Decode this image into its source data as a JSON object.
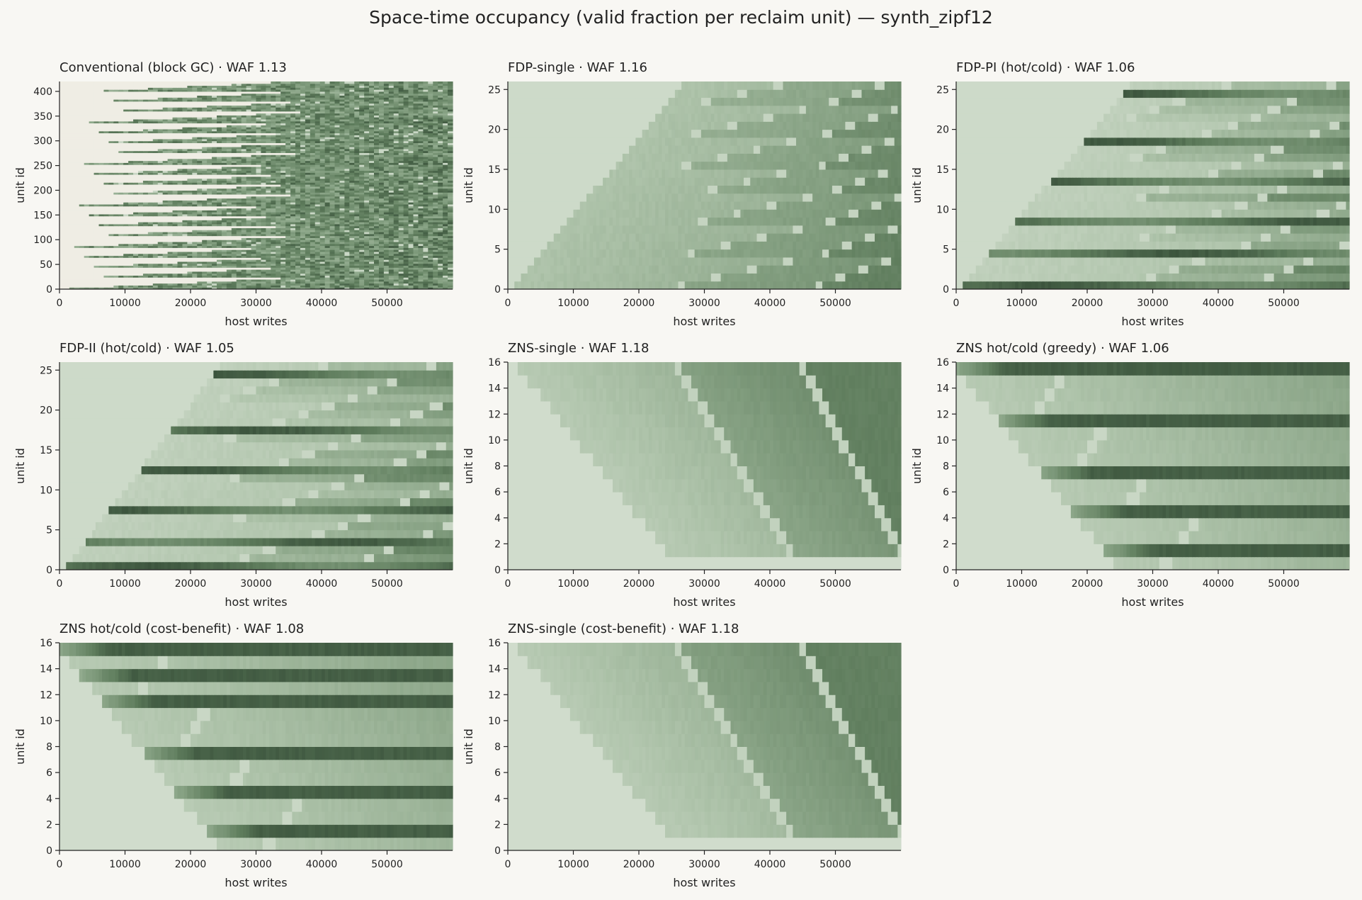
{
  "title": "Space-time occupancy (valid fraction per reclaim unit) — synth_zipf12",
  "colors": {
    "background": "#f8f7f3",
    "empty": "#efede4",
    "colormap": [
      "#d0dccc",
      "#aec3aa",
      "#86a183",
      "#5e7c5c",
      "#344b36"
    ]
  },
  "chart_data": [
    {
      "type": "heatmap",
      "title": "Conventional (block GC) · WAF 1.13",
      "xlabel": "host writes",
      "ylabel": "unit id",
      "xlim": [
        0,
        60000
      ],
      "ylim": [
        0,
        420
      ],
      "xticks": [
        0,
        10000,
        20000,
        30000,
        40000,
        50000
      ],
      "yticks": [
        0,
        50,
        100,
        150,
        200,
        250,
        300,
        350,
        400
      ],
      "units": 420,
      "pattern": "block-gc"
    },
    {
      "type": "heatmap",
      "title": "FDP-single · WAF 1.16",
      "xlabel": "host writes",
      "ylabel": "unit id",
      "xlim": [
        0,
        60000
      ],
      "ylim": [
        0,
        26
      ],
      "xticks": [
        0,
        10000,
        20000,
        30000,
        40000,
        50000
      ],
      "yticks": [
        0,
        5,
        10,
        15,
        20,
        25
      ],
      "units": 26,
      "pattern": "single",
      "first_fill": [
        1000,
        26500
      ],
      "reclaim_waves": [
        [
          26500,
          46500
        ],
        [
          47500,
          60000
        ]
      ]
    },
    {
      "type": "heatmap",
      "title": "FDP-PI (hot/cold) · WAF 1.06",
      "xlabel": "host writes",
      "ylabel": "unit id",
      "xlim": [
        0,
        60000
      ],
      "ylim": [
        0,
        26
      ],
      "xticks": [
        0,
        10000,
        20000,
        30000,
        40000,
        50000
      ],
      "yticks": [
        0,
        5,
        10,
        15,
        20,
        25
      ],
      "units": 26,
      "pattern": "hotcold",
      "first_fill": [
        1000,
        26500
      ],
      "hot_units": [
        0,
        4,
        8,
        13,
        18,
        24
      ],
      "waves": [
        [
          26000,
          45000
        ],
        [
          45000,
          60000
        ]
      ]
    },
    {
      "type": "heatmap",
      "title": "FDP-II (hot/cold) · WAF 1.05",
      "xlabel": "host writes",
      "ylabel": "unit id",
      "xlim": [
        0,
        60000
      ],
      "ylim": [
        0,
        26
      ],
      "xticks": [
        0,
        10000,
        20000,
        30000,
        40000,
        50000
      ],
      "yticks": [
        0,
        5,
        10,
        15,
        20,
        25
      ],
      "units": 26,
      "pattern": "hotcold",
      "first_fill": [
        1000,
        24500
      ],
      "hot_units": [
        0,
        3,
        7,
        12,
        17,
        24
      ],
      "waves": [
        [
          24500,
          44000
        ],
        [
          44000,
          60000
        ]
      ]
    },
    {
      "type": "heatmap",
      "title": "ZNS-single · WAF 1.18",
      "xlabel": "host writes",
      "ylabel": "unit id",
      "xlim": [
        0,
        60000
      ],
      "ylim": [
        0,
        16
      ],
      "xticks": [
        0,
        10000,
        20000,
        30000,
        40000,
        50000
      ],
      "yticks": [
        0,
        2,
        4,
        6,
        8,
        10,
        12,
        14,
        16
      ],
      "units": 16,
      "pattern": "zns",
      "fill_start": [
        0,
        24000
      ],
      "reclaim_waves": [
        [
          26000,
          43000
        ],
        [
          45000,
          60000
        ]
      ]
    },
    {
      "type": "heatmap",
      "title": "ZNS hot/cold (greedy) · WAF 1.06",
      "xlabel": "host writes",
      "ylabel": "unit id",
      "xlim": [
        0,
        60000
      ],
      "ylim": [
        0,
        16
      ],
      "xticks": [
        0,
        10000,
        20000,
        30000,
        40000,
        50000
      ],
      "yticks": [
        0,
        2,
        4,
        6,
        8,
        10,
        12,
        14,
        16
      ],
      "units": 16,
      "pattern": "zns-hotcold",
      "fill_start": [
        0,
        24000
      ],
      "hot_units": [
        15,
        11,
        7,
        4,
        1
      ]
    },
    {
      "type": "heatmap",
      "title": "ZNS hot/cold (cost-benefit) · WAF 1.08",
      "xlabel": "host writes",
      "ylabel": "unit id",
      "xlim": [
        0,
        60000
      ],
      "ylim": [
        0,
        16
      ],
      "xticks": [
        0,
        10000,
        20000,
        30000,
        40000,
        50000
      ],
      "yticks": [
        0,
        2,
        4,
        6,
        8,
        10,
        12,
        14,
        16
      ],
      "units": 16,
      "pattern": "zns-hotcold",
      "fill_start": [
        0,
        24000
      ],
      "hot_units": [
        15,
        13,
        11,
        7,
        4,
        1
      ]
    },
    {
      "type": "heatmap",
      "title": "ZNS-single (cost-benefit) · WAF 1.18",
      "xlabel": "host writes",
      "ylabel": "unit id",
      "xlim": [
        0,
        60000
      ],
      "ylim": [
        0,
        16
      ],
      "xticks": [
        0,
        10000,
        20000,
        30000,
        40000,
        50000
      ],
      "yticks": [
        0,
        2,
        4,
        6,
        8,
        10,
        12,
        14,
        16
      ],
      "units": 16,
      "pattern": "zns",
      "fill_start": [
        0,
        24000
      ],
      "reclaim_waves": [
        [
          26000,
          43000
        ],
        [
          45000,
          60000
        ]
      ]
    }
  ]
}
